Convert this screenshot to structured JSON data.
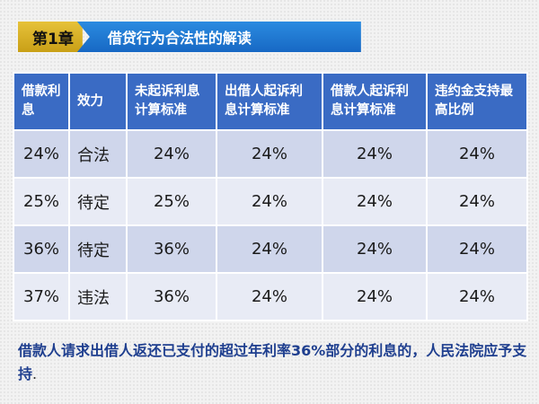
{
  "header": {
    "chapter_label": "第1章",
    "title": "借贷行为合法性的解读"
  },
  "table": {
    "columns": [
      "借款利息",
      "效力",
      "未起诉利息计算标准",
      "出借人起诉利息计算标准",
      "借款人起诉利息计算标准",
      "违约金支持最高比例"
    ],
    "rows": [
      [
        "24%",
        "合法",
        "24%",
        "24%",
        "24%",
        "24%"
      ],
      [
        "25%",
        "待定",
        "25%",
        "24%",
        "24%",
        "24%"
      ],
      [
        "36%",
        "待定",
        "36%",
        "24%",
        "24%",
        "24%"
      ],
      [
        "37%",
        "违法",
        "36%",
        "24%",
        "24%",
        "24%"
      ]
    ]
  },
  "note": {
    "text": "借款人请求出借人返还已支付的超过年利率36%部分的利息的，人民法院应予支持",
    "end_mark": "."
  },
  "colors": {
    "chapter_bg": "#d4ab22",
    "title_bg": "#1f78d1",
    "table_header_bg": "#3a6bc4",
    "row_dark": "#cfd6eb",
    "row_light": "#e8ebf5",
    "note_text": "#1f3f8f"
  }
}
